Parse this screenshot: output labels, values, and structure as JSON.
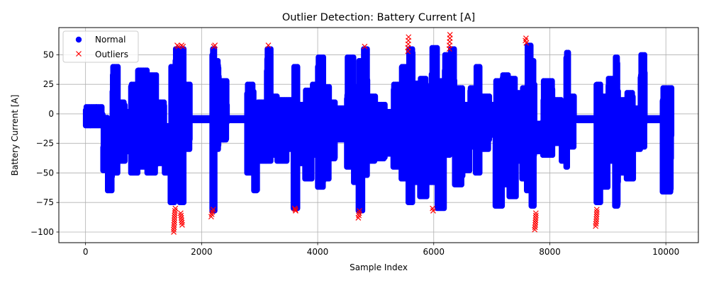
{
  "chart_data": {
    "type": "scatter",
    "title": "Outlier Detection: Battery Current [A]",
    "xlabel": "Sample Index",
    "ylabel": "Battery Current [A]",
    "xlim": [
      -460,
      10560
    ],
    "ylim": [
      -109,
      73
    ],
    "xticks": [
      0,
      2000,
      4000,
      6000,
      8000,
      10000
    ],
    "yticks": [
      -100,
      -75,
      -50,
      -25,
      0,
      25,
      50
    ],
    "grid": true,
    "legend_position": "top-left",
    "colors": {
      "normal": "#0000ff",
      "outliers": "#ff0000"
    },
    "series": [
      {
        "name": "Normal",
        "marker": "circle",
        "segments": [
          [
            0,
            300,
            -10,
            6
          ],
          [
            300,
            380,
            -48,
            -3
          ],
          [
            380,
            460,
            -65,
            -8
          ],
          [
            460,
            560,
            -50,
            40
          ],
          [
            560,
            680,
            -40,
            10
          ],
          [
            680,
            780,
            -32,
            2
          ],
          [
            780,
            900,
            -50,
            25
          ],
          [
            900,
            1060,
            -45,
            37
          ],
          [
            1060,
            1220,
            -50,
            33
          ],
          [
            1220,
            1360,
            -42,
            10
          ],
          [
            1360,
            1460,
            -50,
            -10
          ],
          [
            1460,
            1540,
            -75,
            40
          ],
          [
            1540,
            1620,
            -70,
            55
          ],
          [
            1620,
            1700,
            -75,
            55
          ],
          [
            1700,
            1800,
            -30,
            25
          ],
          [
            1800,
            2180,
            -6,
            -3
          ],
          [
            2180,
            2240,
            -82,
            55
          ],
          [
            2240,
            2300,
            -30,
            45
          ],
          [
            2300,
            2440,
            -22,
            28
          ],
          [
            2440,
            2780,
            -6,
            -3
          ],
          [
            2780,
            2900,
            -50,
            25
          ],
          [
            2900,
            2960,
            -65,
            5
          ],
          [
            2960,
            3120,
            -40,
            10
          ],
          [
            3120,
            3200,
            -40,
            55
          ],
          [
            3200,
            3300,
            -35,
            15
          ],
          [
            3300,
            3480,
            -40,
            12
          ],
          [
            3480,
            3580,
            -30,
            12
          ],
          [
            3580,
            3660,
            -80,
            40
          ],
          [
            3660,
            3780,
            -42,
            8
          ],
          [
            3780,
            3900,
            -55,
            20
          ],
          [
            3900,
            4000,
            -35,
            25
          ],
          [
            4000,
            4100,
            -62,
            48
          ],
          [
            4100,
            4200,
            -55,
            23
          ],
          [
            4200,
            4300,
            -38,
            10
          ],
          [
            4300,
            4500,
            -22,
            5
          ],
          [
            4500,
            4620,
            -45,
            48
          ],
          [
            4620,
            4700,
            -58,
            23
          ],
          [
            4700,
            4780,
            -82,
            45
          ],
          [
            4780,
            4860,
            -52,
            55
          ],
          [
            4860,
            5000,
            -40,
            15
          ],
          [
            5000,
            5160,
            -38,
            8
          ],
          [
            5160,
            5300,
            -34,
            2
          ],
          [
            5300,
            5440,
            -45,
            25
          ],
          [
            5440,
            5560,
            -55,
            40
          ],
          [
            5560,
            5640,
            -75,
            55
          ],
          [
            5640,
            5760,
            -58,
            26
          ],
          [
            5760,
            5880,
            -70,
            30
          ],
          [
            5880,
            5960,
            -58,
            10
          ],
          [
            5960,
            6060,
            -58,
            56
          ],
          [
            6060,
            6180,
            -80,
            28
          ],
          [
            6180,
            6280,
            -35,
            50
          ],
          [
            6280,
            6360,
            -22,
            55
          ],
          [
            6360,
            6500,
            -60,
            22
          ],
          [
            6500,
            6620,
            -48,
            8
          ],
          [
            6620,
            6720,
            -28,
            22
          ],
          [
            6720,
            6800,
            -50,
            40
          ],
          [
            6800,
            6960,
            -30,
            15
          ],
          [
            6960,
            7060,
            -18,
            8
          ],
          [
            7060,
            7180,
            -78,
            28
          ],
          [
            7180,
            7300,
            -60,
            33
          ],
          [
            7300,
            7420,
            -70,
            30
          ],
          [
            7420,
            7520,
            -40,
            18
          ],
          [
            7520,
            7600,
            -55,
            22
          ],
          [
            7600,
            7680,
            -65,
            58
          ],
          [
            7680,
            7740,
            -78,
            45
          ],
          [
            7740,
            7880,
            -32,
            -8
          ],
          [
            7880,
            8060,
            -35,
            28
          ],
          [
            8060,
            8200,
            -25,
            12
          ],
          [
            8200,
            8280,
            -40,
            10
          ],
          [
            8280,
            8320,
            -45,
            52
          ],
          [
            8320,
            8420,
            -28,
            15
          ],
          [
            8420,
            8800,
            -6,
            -3
          ],
          [
            8800,
            8880,
            -75,
            25
          ],
          [
            8880,
            9000,
            -62,
            15
          ],
          [
            9000,
            9120,
            -40,
            30
          ],
          [
            9120,
            9180,
            -78,
            48
          ],
          [
            9180,
            9320,
            -50,
            12
          ],
          [
            9320,
            9440,
            -55,
            18
          ],
          [
            9440,
            9560,
            -30,
            5
          ],
          [
            9560,
            9640,
            -28,
            50
          ],
          [
            9640,
            9940,
            -6,
            -3
          ],
          [
            9940,
            10100,
            -66,
            22
          ]
        ]
      },
      {
        "name": "Outliers",
        "marker": "x",
        "points": [
          [
            1520,
            -100
          ],
          [
            1520,
            -98
          ],
          [
            1525,
            -96
          ],
          [
            1525,
            -94
          ],
          [
            1530,
            -92
          ],
          [
            1530,
            -90
          ],
          [
            1532,
            -88
          ],
          [
            1535,
            -86
          ],
          [
            1538,
            -84
          ],
          [
            1540,
            -82
          ],
          [
            1548,
            -80
          ],
          [
            1640,
            -84
          ],
          [
            1645,
            -86
          ],
          [
            1650,
            -88
          ],
          [
            1655,
            -90
          ],
          [
            1660,
            -92
          ],
          [
            1665,
            -94
          ],
          [
            1580,
            58
          ],
          [
            1600,
            57
          ],
          [
            1655,
            58
          ],
          [
            1680,
            57
          ],
          [
            2165,
            -87
          ],
          [
            2175,
            -85
          ],
          [
            2185,
            -83
          ],
          [
            2200,
            -81
          ],
          [
            2210,
            57
          ],
          [
            2230,
            58
          ],
          [
            3150,
            58
          ],
          [
            3605,
            -80
          ],
          [
            3615,
            -81
          ],
          [
            3620,
            -82
          ],
          [
            4700,
            -88
          ],
          [
            4710,
            -86
          ],
          [
            4715,
            -84
          ],
          [
            4720,
            -82
          ],
          [
            4810,
            57
          ],
          [
            5555,
            53
          ],
          [
            5557,
            56
          ],
          [
            5560,
            59
          ],
          [
            5563,
            62
          ],
          [
            5566,
            65
          ],
          [
            5980,
            -80
          ],
          [
            5990,
            -82
          ],
          [
            6270,
            55
          ],
          [
            6272,
            58
          ],
          [
            6275,
            61
          ],
          [
            6278,
            64
          ],
          [
            6280,
            67
          ],
          [
            7580,
            62
          ],
          [
            7590,
            64
          ],
          [
            7595,
            60
          ],
          [
            7740,
            -98
          ],
          [
            7745,
            -96
          ],
          [
            7750,
            -94
          ],
          [
            7752,
            -92
          ],
          [
            7755,
            -90
          ],
          [
            7757,
            -88
          ],
          [
            7760,
            -86
          ],
          [
            7760,
            -84
          ],
          [
            8790,
            -95
          ],
          [
            8795,
            -93
          ],
          [
            8800,
            -91
          ],
          [
            8802,
            -89
          ],
          [
            8805,
            -87
          ],
          [
            8807,
            -85
          ],
          [
            8810,
            -83
          ],
          [
            8810,
            -81
          ]
        ]
      }
    ]
  }
}
